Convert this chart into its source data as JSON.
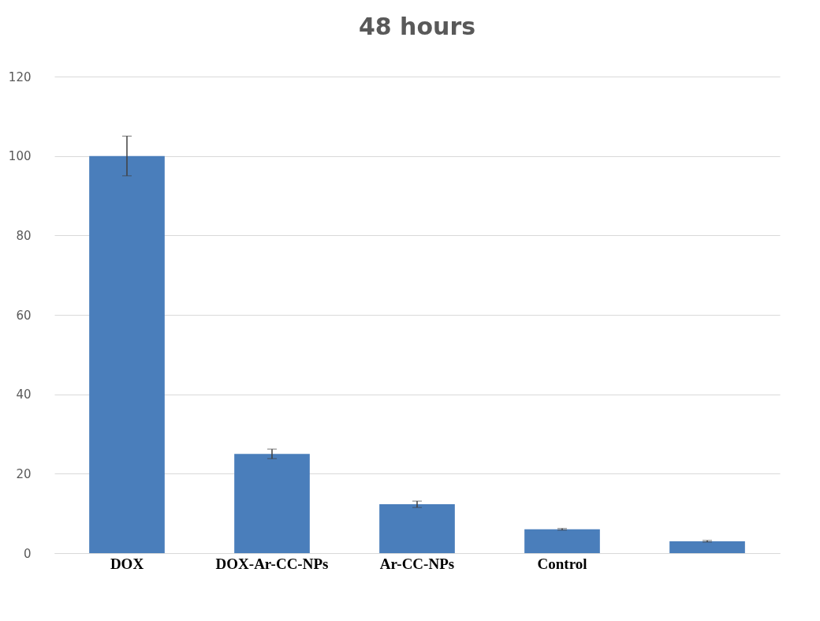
{
  "chart_data": {
    "type": "bar",
    "title": "48 hours",
    "categories": [
      "DOX",
      "DOX-Ar-CC-NPs",
      "Ar-CC-NPs",
      "Control",
      null
    ],
    "values": [
      100,
      25,
      12.3,
      6,
      3
    ],
    "errors": [
      5,
      1.2,
      0.8,
      0.2,
      0.2
    ],
    "color": "#4a7ebb",
    "ylim": [
      0,
      120
    ],
    "yticks": [
      0,
      20,
      40,
      60,
      80,
      100,
      120
    ],
    "grid": "y"
  }
}
